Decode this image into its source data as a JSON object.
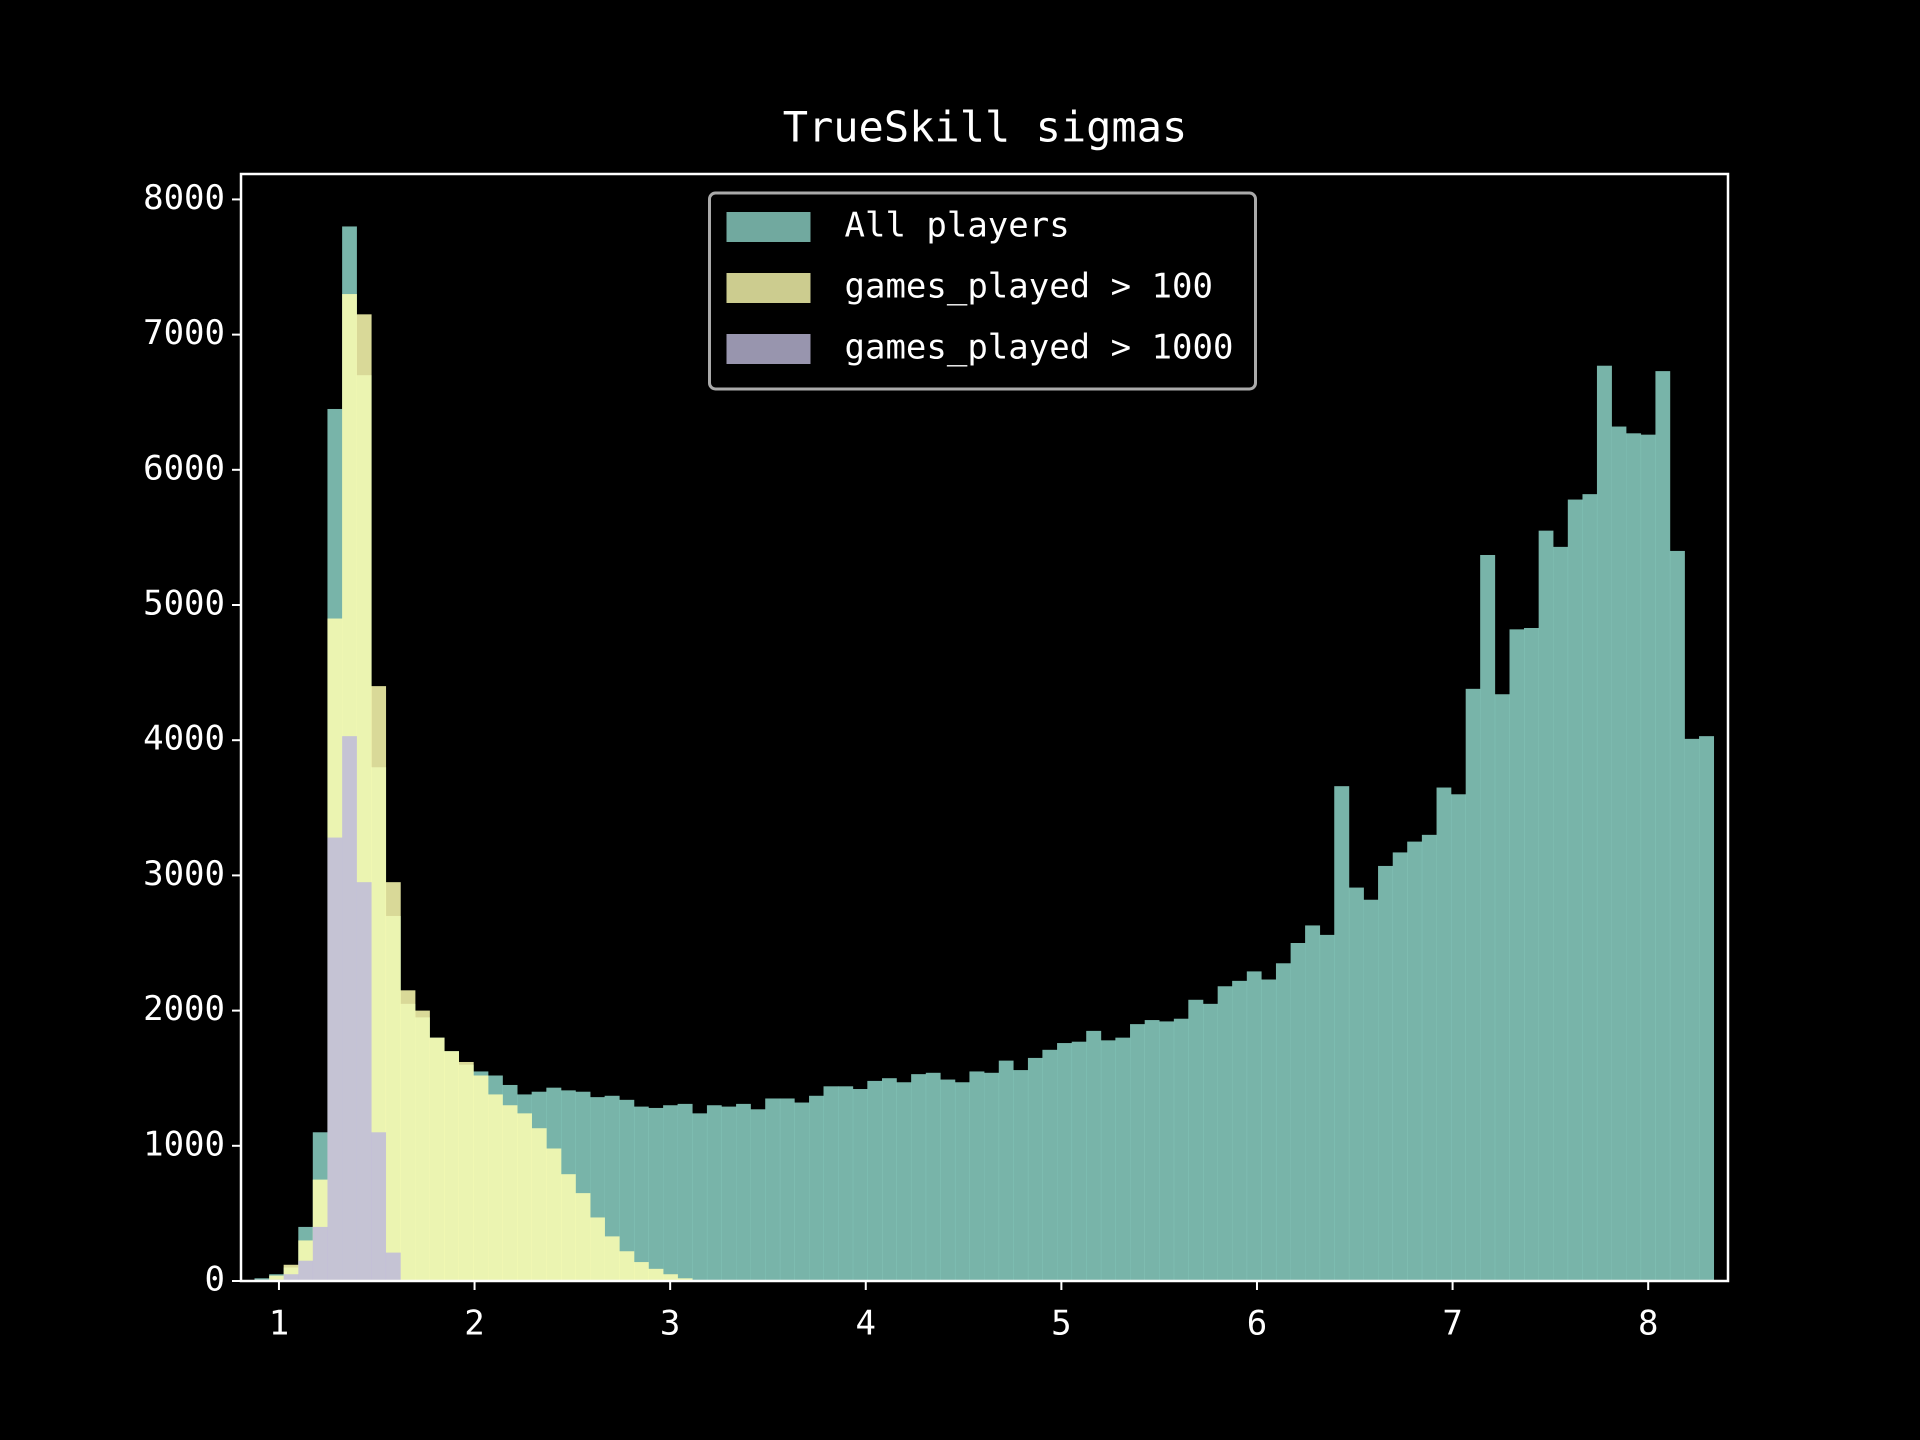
{
  "chart_data": {
    "type": "histogram",
    "title": "TrueSkill sigmas",
    "bins": [
      0.875,
      0.95,
      1.024,
      1.099,
      1.173,
      1.248,
      1.323,
      1.397,
      1.472,
      1.546,
      1.621,
      1.696,
      1.77,
      1.845,
      1.919,
      1.994,
      2.069,
      2.143,
      2.218,
      2.292,
      2.367,
      2.442,
      2.516,
      2.591,
      2.665,
      2.74,
      2.815,
      2.889,
      2.964,
      3.038,
      3.113,
      3.188,
      3.262,
      3.337,
      3.411,
      3.486,
      3.561,
      3.635,
      3.71,
      3.784,
      3.859,
      3.934,
      4.008,
      4.083,
      4.157,
      4.232,
      4.307,
      4.381,
      4.456,
      4.53,
      4.605,
      4.68,
      4.754,
      4.829,
      4.903,
      4.978,
      5.053,
      5.127,
      5.202,
      5.276,
      5.351,
      5.426,
      5.5,
      5.575,
      5.649,
      5.724,
      5.799,
      5.873,
      5.948,
      6.022,
      6.097,
      6.172,
      6.246,
      6.321,
      6.395,
      6.47,
      6.545,
      6.619,
      6.694,
      6.768,
      6.843,
      6.918,
      6.992,
      7.067,
      7.141,
      7.216,
      7.291,
      7.365,
      7.44,
      7.514,
      7.589,
      7.664,
      7.738,
      7.813,
      7.887,
      7.962,
      8.037,
      8.111,
      8.186,
      8.26,
      8.335
    ],
    "series": [
      {
        "name": "All players",
        "color": "#8dd3c7",
        "values": [
          20,
          50,
          100,
          400,
          1100,
          6450,
          7800,
          6700,
          3800,
          2700,
          2050,
          1950,
          1800,
          1700,
          1600,
          1550,
          1520,
          1450,
          1380,
          1400,
          1430,
          1410,
          1400,
          1360,
          1370,
          1340,
          1290,
          1280,
          1300,
          1310,
          1240,
          1300,
          1290,
          1310,
          1270,
          1350,
          1350,
          1320,
          1370,
          1440,
          1440,
          1420,
          1480,
          1500,
          1470,
          1530,
          1540,
          1490,
          1470,
          1550,
          1540,
          1630,
          1560,
          1650,
          1710,
          1760,
          1770,
          1850,
          1780,
          1800,
          1900,
          1930,
          1920,
          1940,
          2080,
          2050,
          2180,
          2220,
          2290,
          2230,
          2350,
          2500,
          2630,
          2560,
          3660,
          2910,
          2820,
          3070,
          3170,
          3250,
          3300,
          3650,
          3600,
          4380,
          5370,
          4340,
          4820,
          4830,
          5550,
          5430,
          5780,
          5820,
          6770,
          6320,
          6270,
          6260,
          6730,
          5400,
          4010,
          4030
        ]
      },
      {
        "name": "games_played > 100",
        "color": "#ffffb3",
        "values": [
          10,
          40,
          120,
          300,
          750,
          4900,
          7300,
          7150,
          4400,
          2950,
          2150,
          2000,
          1800,
          1700,
          1620,
          1520,
          1380,
          1300,
          1240,
          1130,
          980,
          790,
          650,
          470,
          330,
          220,
          140,
          90,
          50,
          20,
          0,
          0,
          0,
          0,
          0,
          0,
          0,
          0,
          0,
          0,
          0,
          0,
          0,
          0,
          0,
          0,
          0,
          0,
          0,
          0,
          0,
          0,
          0,
          0,
          0,
          0,
          0,
          0,
          0,
          0,
          0,
          0,
          0,
          0,
          0,
          0,
          0,
          0,
          0,
          0,
          0,
          0,
          0,
          0,
          0,
          0,
          0,
          0,
          0,
          0,
          0,
          0,
          0,
          0,
          0,
          0,
          0,
          0,
          0,
          0,
          0,
          0,
          0,
          0,
          0,
          0,
          0,
          0,
          0,
          0
        ]
      },
      {
        "name": "games_played > 1000",
        "color": "#bebada",
        "values": [
          10,
          10,
          50,
          150,
          400,
          3280,
          4030,
          2950,
          1100,
          210,
          0,
          0,
          0,
          0,
          0,
          0,
          0,
          0,
          0,
          0,
          0,
          0,
          0,
          0,
          0,
          0,
          0,
          0,
          0,
          0,
          0,
          0,
          0,
          0,
          0,
          0,
          0,
          0,
          0,
          0,
          0,
          0,
          0,
          0,
          0,
          0,
          0,
          0,
          0,
          0,
          0,
          0,
          0,
          0,
          0,
          0,
          0,
          0,
          0,
          0,
          0,
          0,
          0,
          0,
          0,
          0,
          0,
          0,
          0,
          0,
          0,
          0,
          0,
          0,
          0,
          0,
          0,
          0,
          0,
          0,
          0,
          0,
          0,
          0,
          0,
          0,
          0,
          0,
          0,
          0,
          0,
          0,
          0,
          0,
          0,
          0,
          0,
          0,
          0,
          0
        ]
      }
    ],
    "xlim": [
      0.806,
      8.408
    ],
    "xticks": [
      1,
      2,
      3,
      4,
      5,
      6,
      7,
      8
    ],
    "ylim": [
      0,
      8188
    ],
    "yticks": [
      0,
      1000,
      2000,
      3000,
      4000,
      5000,
      6000,
      7000,
      8000
    ],
    "legend": "upper center"
  }
}
